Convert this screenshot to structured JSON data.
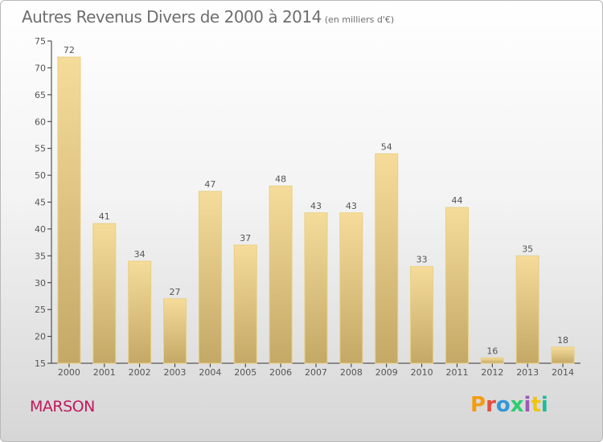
{
  "chart_data": {
    "type": "bar",
    "title": "Autres Revenus Divers de 2000 à 2014",
    "subtitle": "(en milliers d'€)",
    "categories": [
      "2000",
      "2001",
      "2002",
      "2003",
      "2004",
      "2005",
      "2006",
      "2007",
      "2008",
      "2009",
      "2010",
      "2011",
      "2012",
      "2013",
      "2014"
    ],
    "values": [
      72,
      41,
      34,
      27,
      47,
      37,
      48,
      43,
      43,
      54,
      33,
      44,
      16,
      35,
      18
    ],
    "ylim": [
      15,
      75
    ],
    "yticks": [
      15,
      20,
      25,
      30,
      35,
      40,
      45,
      50,
      55,
      60,
      65,
      70,
      75
    ],
    "grid": false,
    "data_labels": true
  },
  "footer": {
    "commune": "MARSON",
    "logo_text": "Proxiti"
  },
  "colors": {
    "bar_top": "#f6dc9a",
    "bar_bottom": "#c3a866",
    "text": "#555555",
    "title": "#6e6e6e",
    "commune": "#c2185b",
    "logo_letters": [
      "#f39c12",
      "#e74c3c",
      "#3498db",
      "#2ecc71",
      "#9b59b6",
      "#f1c40f",
      "#1abc9c"
    ]
  }
}
